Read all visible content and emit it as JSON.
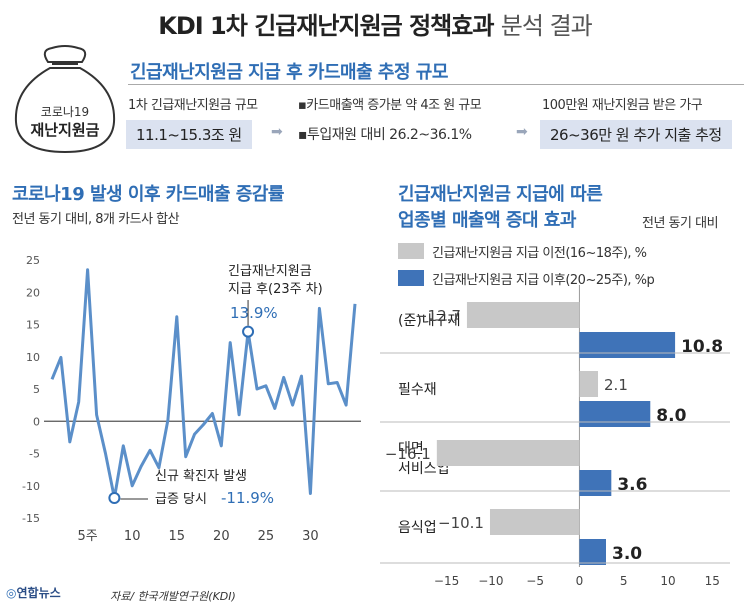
{
  "title_main": "KDI 1차 긴급재난지원금 정책효과",
  "title_light": "분석 결과",
  "bag": {
    "line1": "코로나19",
    "line2": "재난지원금"
  },
  "summary": {
    "title": "긴급재난지원금 지급 후 카드매출 추정 규모",
    "col1_label": "1차 긴급재난지원금 규모",
    "col1_value": "11.1~15.3조 원",
    "col2_label1": "▪카드매출액 증가분 약 4조 원 규모",
    "col2_label2": "▪투입재원 대비 26.2~36.1%",
    "col3_label": "100만원 재난지원금 받은 가구",
    "col3_value": "26~36만 원 추가 지출 추정"
  },
  "left_chart": {
    "title": "코로나19 발생 이후 카드매출 증감률",
    "subtitle": "전년 동기 대비, 8개 카드사 합산",
    "annotation1_line1": "긴급재난지원금",
    "annotation1_line2": "지급 후(23주 차)",
    "annotation1_value": "13.9%",
    "annotation2_line1": "신규 확진자 발생",
    "annotation2_line2": "급증 당시",
    "annotation2_value": "-11.9%"
  },
  "right_chart": {
    "title_line1": "긴급재난지원금 지급에 따른",
    "title_line2": "업종별 매출액 증대 효과",
    "note": "전년 동기 대비",
    "legend1": "긴급재난지원금 지급 이전(16~18주), %",
    "legend2": "긴급재난지원금 지급 이후(20~25주), %p"
  },
  "footer": "자료/ 한국개발연구원(KDI)",
  "logo": "연합뉴스",
  "colors": {
    "accent": "#2f6eb5",
    "line": "#5b8fc9",
    "bar_before": "#c8c8c8",
    "bar_after": "#3f73b8"
  },
  "chart_data": [
    {
      "type": "line",
      "title": "코로나19 발생 이후 카드매출 증감률",
      "subtitle": "전년 동기 대비, 8개 카드사 합산",
      "x": [
        1,
        2,
        3,
        4,
        5,
        6,
        7,
        8,
        9,
        10,
        11,
        12,
        13,
        14,
        15,
        16,
        17,
        18,
        19,
        20,
        21,
        22,
        23,
        24,
        25,
        26,
        27,
        28,
        29,
        30,
        31,
        32,
        33,
        34,
        35
      ],
      "y": [
        6.5,
        9.9,
        -3.2,
        3.0,
        23.5,
        1.0,
        -5.0,
        -11.9,
        -3.8,
        -10.0,
        -7.0,
        -4.5,
        -7.2,
        0.2,
        16.2,
        -5.5,
        -2.0,
        -0.5,
        1.2,
        -3.8,
        12.2,
        1.0,
        13.9,
        5.0,
        5.5,
        2.0,
        6.8,
        2.5,
        7.0,
        -11.2,
        17.5,
        5.8,
        6.0,
        2.5,
        18.2
      ],
      "xticks": [
        5,
        10,
        15,
        20,
        25,
        30
      ],
      "xtick_labels": [
        "5주",
        "10",
        "15",
        "20",
        "25",
        "30"
      ],
      "ylim": [
        -15,
        25
      ],
      "yticks": [
        -15,
        -10,
        -5,
        0,
        5,
        10,
        15,
        20,
        25
      ],
      "markers": [
        {
          "x": 8,
          "y": -11.9,
          "label": "-11.9%"
        },
        {
          "x": 23,
          "y": 13.9,
          "label": "13.9%"
        }
      ]
    },
    {
      "type": "bar",
      "orientation": "horizontal",
      "title": "긴급재난지원금 지급에 따른 업종별 매출액 증대 효과",
      "categories": [
        "(준)내구재",
        "필수재",
        "대면 서비스업",
        "음식업"
      ],
      "series": [
        {
          "name": "긴급재난지원금 지급 이전(16~18주), %",
          "values": [
            -12.7,
            2.1,
            -16.1,
            -10.1
          ]
        },
        {
          "name": "긴급재난지원금 지급 이후(20~25주), %p",
          "values": [
            10.8,
            8.0,
            3.6,
            3.0
          ]
        }
      ],
      "xlim": [
        -18,
        17
      ],
      "xticks": [
        -15,
        -10,
        -5,
        0,
        5,
        10,
        15
      ]
    }
  ]
}
